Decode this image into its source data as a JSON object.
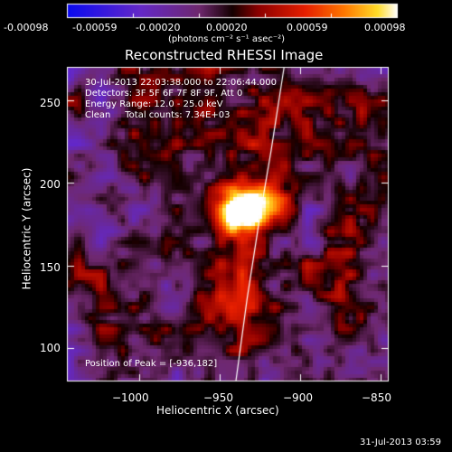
{
  "colorbar": {
    "tick_labels": [
      "-0.00098",
      "-0.00059",
      "-0.00020",
      "0.00020",
      "0.00059",
      "0.00098"
    ],
    "unit_label": "(photons cm⁻² s⁻¹ asec⁻²)",
    "range": [
      -0.00098,
      0.00098
    ]
  },
  "image_title": "Reconstructed RHESSI Image",
  "info_lines": [
    "30-Jul-2013 22:03:38.000 to 22:06:44.000",
    "Detectors: 3F 5F 6F 7F 8F 9F, Att 0",
    "Energy Range: 12.0 - 25.0 keV",
    "Clean     Total counts: 7.34E+03"
  ],
  "peak_text": "Position of Peak = [-936,182]",
  "footer_date": "31-Jul-2013 03:59",
  "chart_data": {
    "type": "heatmap",
    "title": "Reconstructed RHESSI Image",
    "xlabel": "Heliocentric X (arcsec)",
    "ylabel": "Heliocentric Y (arcsec)",
    "xlim": [
      -1045,
      -845
    ],
    "ylim": [
      80,
      270
    ],
    "x_ticks": [
      -1000,
      -950,
      -900,
      -850
    ],
    "x_tick_labels": [
      "−1000",
      "−950",
      "−900",
      "−850"
    ],
    "y_ticks": [
      100,
      150,
      200,
      250
    ],
    "y_tick_labels": [
      "100",
      "150",
      "200",
      "250"
    ],
    "peak": {
      "x": -936,
      "y": 182
    },
    "colormap": "rainbow-blue-red-yellow-white",
    "limb_curve": [
      [
        -940,
        80
      ],
      [
        -933,
        130
      ],
      [
        -925,
        180
      ],
      [
        -918,
        220
      ],
      [
        -910,
        270
      ]
    ]
  }
}
